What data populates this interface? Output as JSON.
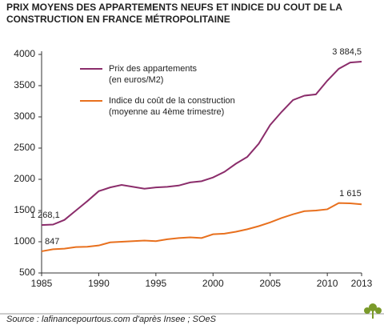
{
  "chart_data": {
    "type": "line",
    "title_lines": [
      "PRIX MOYENS DES APPARTEMENTS NEUFS ET INDICE DU COUT DE LA",
      "CONSTRUCTION EN FRANCE MÉTROPOLITAINE"
    ],
    "x": [
      1985,
      1986,
      1987,
      1988,
      1989,
      1990,
      1991,
      1992,
      1993,
      1994,
      1995,
      1996,
      1997,
      1998,
      1999,
      2000,
      2001,
      2002,
      2003,
      2004,
      2005,
      2006,
      2007,
      2008,
      2009,
      2010,
      2011,
      2012,
      2013
    ],
    "series": [
      {
        "name_lines": [
          "Prix des appartements",
          "(en euros/M2)"
        ],
        "color": "#8b2d6b",
        "values": [
          1268.1,
          1275,
          1350,
          1500,
          1650,
          1810,
          1870,
          1910,
          1880,
          1850,
          1870,
          1880,
          1900,
          1950,
          1970,
          2030,
          2120,
          2250,
          2360,
          2570,
          2870,
          3080,
          3270,
          3340,
          3360,
          3580,
          3770,
          3870,
          3884.5
        ],
        "value_labels": [
          "1 268,1",
          null,
          null,
          null,
          null,
          null,
          null,
          null,
          null,
          null,
          null,
          null,
          null,
          null,
          null,
          null,
          null,
          null,
          null,
          null,
          null,
          null,
          null,
          null,
          null,
          null,
          null,
          null,
          "3 884,5"
        ]
      },
      {
        "name_lines": [
          "Indice du coût de la construction",
          "(moyenne au 4ème trimestre)"
        ],
        "color": "#e8701e",
        "values": [
          847,
          880,
          890,
          915,
          920,
          940,
          990,
          1000,
          1010,
          1020,
          1010,
          1040,
          1060,
          1070,
          1060,
          1120,
          1130,
          1160,
          1200,
          1250,
          1310,
          1380,
          1440,
          1490,
          1500,
          1520,
          1620,
          1615,
          1600
        ],
        "value_labels": [
          "847",
          null,
          null,
          null,
          null,
          null,
          null,
          null,
          null,
          null,
          null,
          null,
          null,
          null,
          null,
          null,
          null,
          null,
          null,
          null,
          null,
          null,
          null,
          null,
          null,
          null,
          null,
          "1 615",
          null
        ]
      }
    ],
    "xlim": [
      1985,
      2013
    ],
    "xticks": [
      1985,
      1990,
      1995,
      2000,
      2005,
      2010,
      2013
    ],
    "ylim": [
      500,
      4000
    ],
    "yticks": [
      500,
      1000,
      1500,
      2000,
      2500,
      3000,
      3500,
      4000
    ],
    "grid": false,
    "source": "Source : lafinancepourtous.com d'après Insee ; SOeS"
  }
}
